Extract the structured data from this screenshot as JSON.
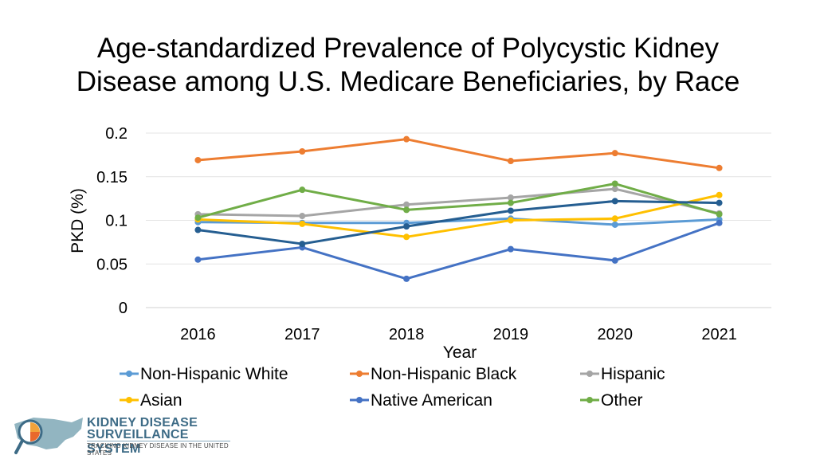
{
  "title_line1": "Age-standardized Prevalence of Polycystic Kidney",
  "title_line2": "Disease among U.S. Medicare Beneficiaries, by Race",
  "logo": {
    "line1": "KIDNEY DISEASE",
    "line2": "SURVEILLANCE SYSTEM",
    "tagline": "TRACKING KIDNEY DISEASE IN THE UNITED STATES"
  },
  "chart_data": {
    "type": "line",
    "xlabel": "Year",
    "ylabel": "PKD (%)",
    "ylim": [
      0,
      0.2
    ],
    "yticks": [
      "0",
      "0.05",
      "0.1",
      "0.15",
      "0.2"
    ],
    "ytick_values": [
      0,
      0.05,
      0.1,
      0.15,
      0.2
    ],
    "grid": true,
    "legend_position": "bottom",
    "categories": [
      "2016",
      "2017",
      "2018",
      "2019",
      "2020",
      "2021"
    ],
    "series": [
      {
        "name": "Non-Hispanic White",
        "color": "#5b9bd5",
        "values": [
          0.098,
          0.097,
          0.097,
          0.102,
          0.095,
          0.101
        ]
      },
      {
        "name": "Non-Hispanic Black",
        "color": "#ed7d31",
        "values": [
          0.169,
          0.179,
          0.193,
          0.168,
          0.177,
          0.16
        ]
      },
      {
        "name": "Hispanic",
        "color": "#a5a5a5",
        "values": [
          0.107,
          0.105,
          0.118,
          0.126,
          0.136,
          0.108
        ]
      },
      {
        "name": "Asian",
        "color": "#ffc000",
        "values": [
          0.101,
          0.096,
          0.081,
          0.1,
          0.102,
          0.129
        ]
      },
      {
        "name": "Native American",
        "color": "#4472c4",
        "values": [
          0.055,
          0.069,
          0.033,
          0.067,
          0.054,
          0.097
        ]
      },
      {
        "name": "Other",
        "color": "#70ad47",
        "values": [
          0.103,
          0.135,
          0.112,
          0.12,
          0.142,
          0.107
        ]
      },
      {
        "name": "",
        "color": "#255e91",
        "values": [
          0.089,
          0.073,
          0.093,
          0.111,
          0.122,
          0.12
        ]
      }
    ]
  }
}
